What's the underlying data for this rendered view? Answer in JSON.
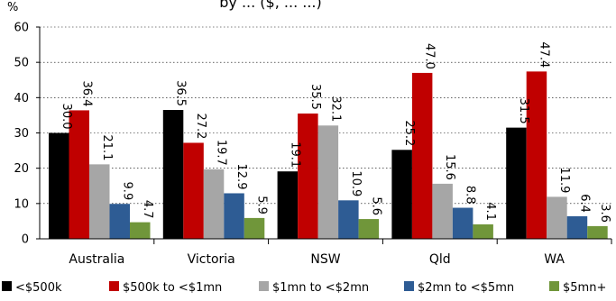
{
  "chart_data": {
    "type": "bar",
    "title": "by ... ($, ... ...)",
    "unit_label": "%",
    "categories": [
      "Australia",
      "Victoria",
      "NSW",
      "Qld",
      "WA"
    ],
    "series": [
      {
        "name": "<$500k",
        "color": "#000000",
        "values": [
          30.0,
          36.5,
          19.1,
          25.2,
          31.5
        ]
      },
      {
        "name": "$500k to <$1mn",
        "color": "#c00000",
        "values": [
          36.4,
          27.2,
          35.5,
          47.0,
          47.4
        ]
      },
      {
        "name": "$1mn to <$2mn",
        "color": "#a6a6a6",
        "values": [
          21.1,
          19.7,
          32.1,
          15.6,
          11.9
        ]
      },
      {
        "name": "$2mn to <$5mn",
        "color": "#2e5c94",
        "values": [
          9.9,
          12.9,
          10.9,
          8.8,
          6.4
        ]
      },
      {
        "name": "$5mn+",
        "color": "#70963a",
        "values": [
          4.7,
          5.9,
          5.6,
          4.1,
          3.6
        ]
      }
    ],
    "ylim": [
      0,
      60
    ],
    "yticks": [
      0,
      10,
      20,
      30,
      40,
      50,
      60
    ],
    "grid": true,
    "legend_position": "bottom"
  }
}
